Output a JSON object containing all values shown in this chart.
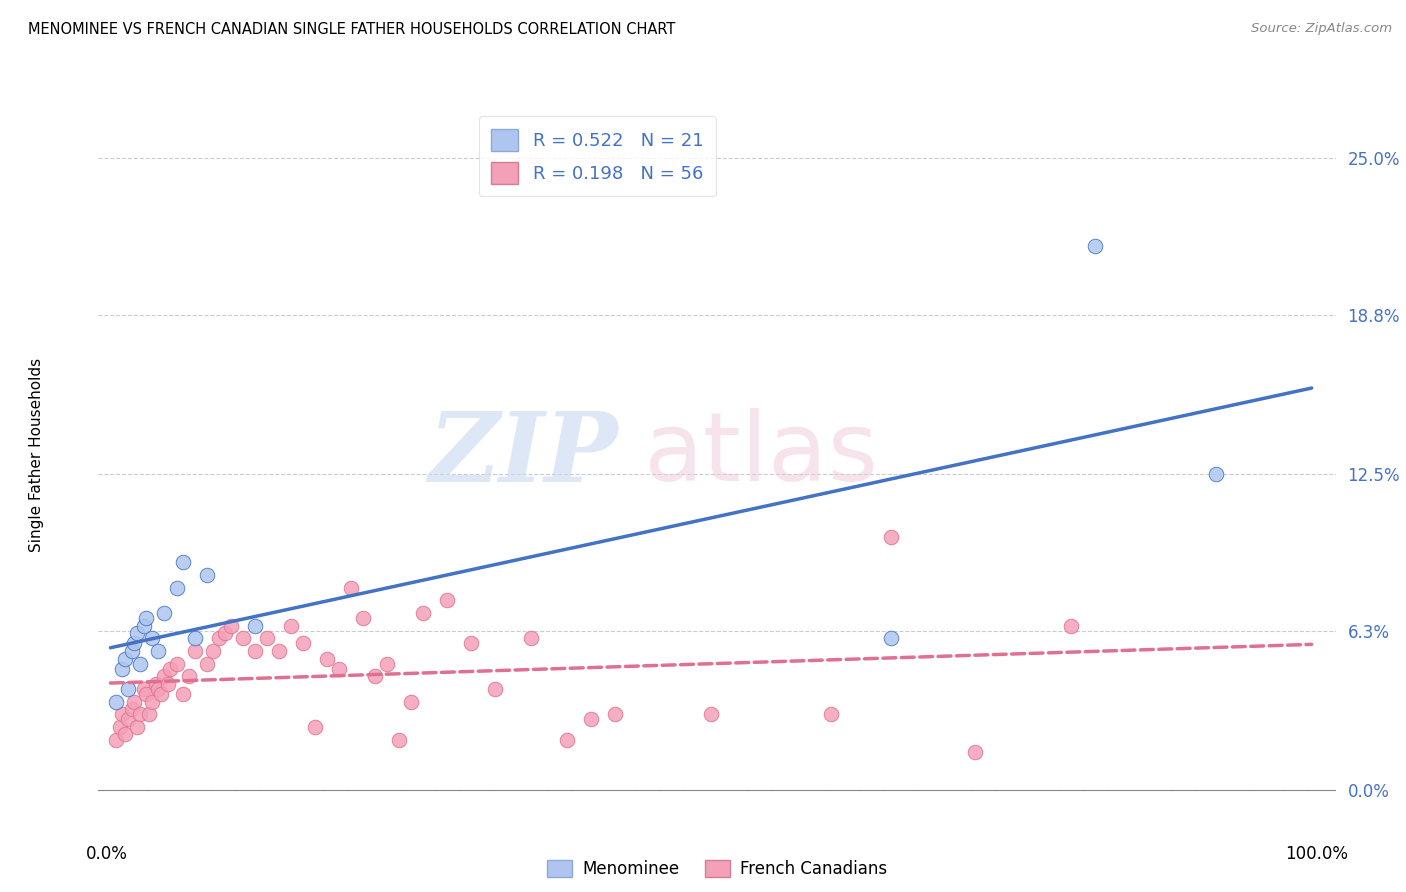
{
  "title": "MENOMINEE VS FRENCH CANADIAN SINGLE FATHER HOUSEHOLDS CORRELATION CHART",
  "source": "Source: ZipAtlas.com",
  "ylabel": "Single Father Households",
  "ytick_labels": [
    "0.0%",
    "6.3%",
    "12.5%",
    "18.8%",
    "25.0%"
  ],
  "ytick_values": [
    0.0,
    0.063,
    0.125,
    0.188,
    0.25
  ],
  "xlim": [
    0.0,
    1.0
  ],
  "ylim": [
    -0.005,
    0.27
  ],
  "r_menominee": 0.522,
  "n_menominee": 21,
  "r_french": 0.198,
  "n_french": 56,
  "color_menominee": "#aec6ef",
  "color_french": "#f4a0b8",
  "color_menominee_line": "#4472c4",
  "color_french_line": "#e07090",
  "legend_label_1": "Menominee",
  "legend_label_2": "French Canadians",
  "menominee_x": [
    0.005,
    0.01,
    0.012,
    0.015,
    0.018,
    0.02,
    0.022,
    0.025,
    0.028,
    0.03,
    0.035,
    0.04,
    0.045,
    0.055,
    0.06,
    0.07,
    0.08,
    0.12,
    0.65,
    0.82,
    0.92
  ],
  "menominee_y": [
    0.035,
    0.048,
    0.052,
    0.04,
    0.055,
    0.058,
    0.062,
    0.05,
    0.065,
    0.068,
    0.06,
    0.055,
    0.07,
    0.08,
    0.09,
    0.06,
    0.085,
    0.065,
    0.06,
    0.215,
    0.125
  ],
  "french_x": [
    0.005,
    0.008,
    0.01,
    0.012,
    0.015,
    0.018,
    0.02,
    0.022,
    0.025,
    0.028,
    0.03,
    0.032,
    0.035,
    0.038,
    0.04,
    0.042,
    0.045,
    0.048,
    0.05,
    0.055,
    0.06,
    0.065,
    0.07,
    0.08,
    0.085,
    0.09,
    0.095,
    0.1,
    0.11,
    0.12,
    0.13,
    0.14,
    0.15,
    0.16,
    0.17,
    0.18,
    0.19,
    0.2,
    0.21,
    0.22,
    0.23,
    0.24,
    0.25,
    0.26,
    0.28,
    0.3,
    0.32,
    0.35,
    0.38,
    0.4,
    0.42,
    0.5,
    0.6,
    0.65,
    0.72,
    0.8
  ],
  "french_y": [
    0.02,
    0.025,
    0.03,
    0.022,
    0.028,
    0.032,
    0.035,
    0.025,
    0.03,
    0.04,
    0.038,
    0.03,
    0.035,
    0.042,
    0.04,
    0.038,
    0.045,
    0.042,
    0.048,
    0.05,
    0.038,
    0.045,
    0.055,
    0.05,
    0.055,
    0.06,
    0.062,
    0.065,
    0.06,
    0.055,
    0.06,
    0.055,
    0.065,
    0.058,
    0.025,
    0.052,
    0.048,
    0.08,
    0.068,
    0.045,
    0.05,
    0.02,
    0.035,
    0.07,
    0.075,
    0.058,
    0.04,
    0.06,
    0.02,
    0.028,
    0.03,
    0.03,
    0.03,
    0.1,
    0.015,
    0.065
  ]
}
